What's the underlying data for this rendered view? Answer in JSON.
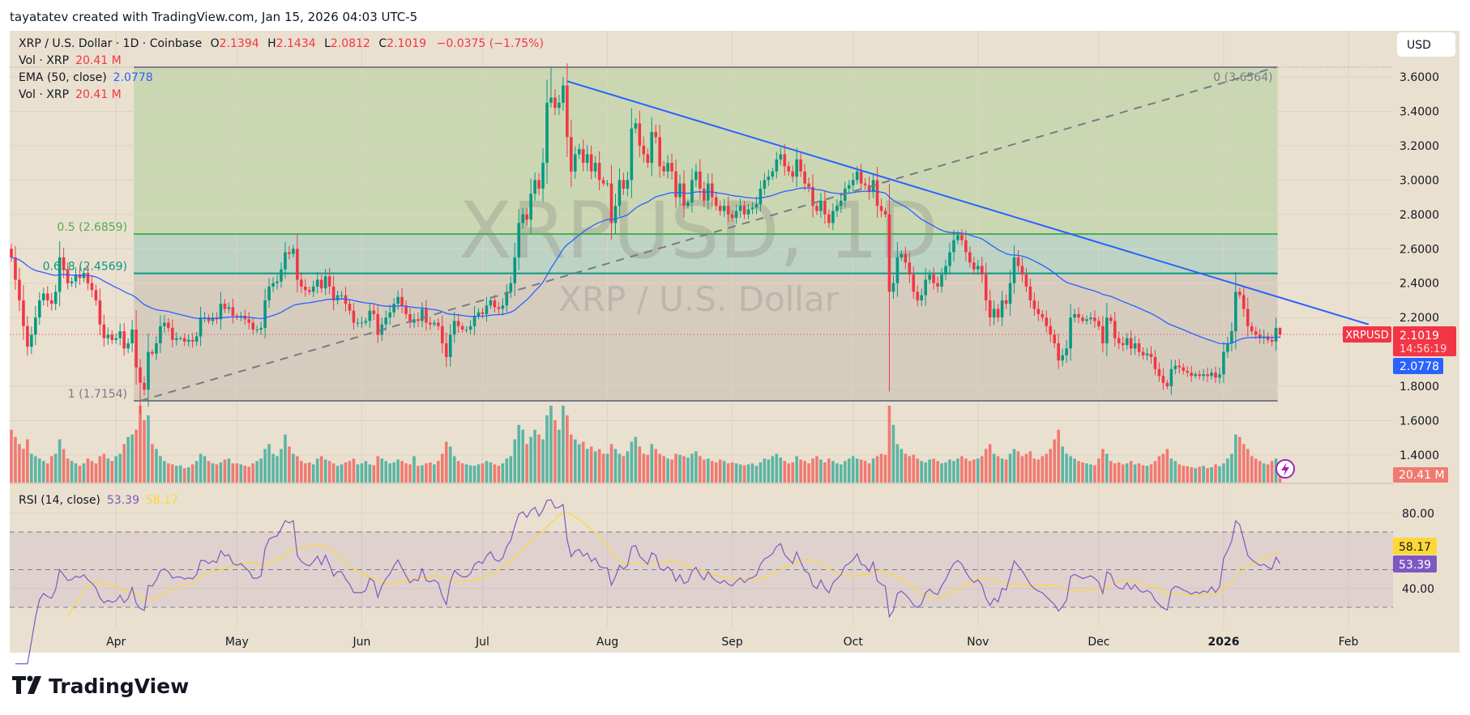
{
  "attribution": "tayatatev created with TradingView.com, Jan 15, 2026 04:03 UTC-5",
  "legend": {
    "symbol": "XRP / U.S. Dollar · 1D · Coinbase",
    "o_label": "O",
    "open": "2.1394",
    "h_label": "H",
    "high": "2.1434",
    "l_label": "L",
    "low": "2.0812",
    "c_label": "C",
    "close": "2.1019",
    "change": "−0.0375 (−1.75%)",
    "vol_label": "Vol · XRP",
    "vol_value": "20.41 M",
    "ema_label": "EMA (50, close)",
    "ema_value": "2.0778",
    "vol2_label": "Vol · XRP",
    "vol2_value": "20.41 M",
    "rsi_label": "RSI (14, close)",
    "rsi_value": "53.39",
    "rsi_ma_value": "58.17"
  },
  "currency_button": "USD",
  "watermark": {
    "line1": "XRPUSD, 1D",
    "line2": "XRP / U.S. Dollar"
  },
  "price_labels": {
    "symbol": "XRPUSD",
    "last": "2.1019",
    "countdown": "14:56:19",
    "ema": "2.0778",
    "volume": "20.41 M",
    "rsi_ma": "58.17",
    "rsi": "53.39"
  },
  "brand": "TradingView",
  "colors": {
    "background": "#eae0d0",
    "up": "#089981",
    "down": "#f23645",
    "volume_up": "#5bb5a4",
    "volume_down": "#f07a72",
    "ema": "#2962ff",
    "trendline": "#2962ff",
    "rsi": "#7e57c2",
    "rsi_ma": "#fdd835",
    "fib_zone_0_05": "#cbd7b3",
    "fib_zone_05_0618": "#bdd3c4",
    "fib_zone_0618_1": "#d6ccbe",
    "fib_05": "#4caf50",
    "fib_0618": "#089981",
    "fib_0": "#787b86",
    "fib_1": "#787b86"
  },
  "chart_data": {
    "type": "candlestick",
    "symbol": "XRPUSD",
    "interval": "1D",
    "price_axis": {
      "ticks": [
        "3.6000",
        "3.4000",
        "3.2000",
        "3.0000",
        "2.8000",
        "2.6000",
        "2.4000",
        "2.2000",
        "1.8000",
        "1.6000",
        "1.4000"
      ],
      "range": [
        1.3,
        3.75
      ]
    },
    "rsi_axis": {
      "ticks": [
        "80.00",
        "40.00"
      ],
      "band": [
        30,
        70
      ],
      "mid": 50
    },
    "time_axis": {
      "ticks": [
        {
          "label": "Apr",
          "date": "2025-04-01"
        },
        {
          "label": "May",
          "date": "2025-05-01"
        },
        {
          "label": "Jun",
          "date": "2025-06-01"
        },
        {
          "label": "Jul",
          "date": "2025-07-01"
        },
        {
          "label": "Aug",
          "date": "2025-08-01"
        },
        {
          "label": "Sep",
          "date": "2025-09-01"
        },
        {
          "label": "Oct",
          "date": "2025-10-01"
        },
        {
          "label": "Nov",
          "date": "2025-11-01"
        },
        {
          "label": "Dec",
          "date": "2025-12-01"
        },
        {
          "label": "2026",
          "date": "2026-01-01",
          "bold": true
        },
        {
          "label": "Feb",
          "date": "2026-02-01"
        }
      ]
    },
    "last_candle": {
      "open": 2.1394,
      "high": 2.1434,
      "low": 2.0812,
      "close": 2.1019
    },
    "wick_extremes": [
      {
        "date": "2025-04-07",
        "low": 1.64
      },
      {
        "date": "2025-07-18",
        "high": 3.66
      },
      {
        "date": "2025-10-10",
        "low": 1.77
      }
    ],
    "months": [
      {
        "month": "2025-03",
        "first_day": 6,
        "closes": [
          2.55,
          2.42,
          2.3,
          2.15,
          2.03,
          2.1,
          2.2,
          2.3,
          2.34,
          2.3,
          2.28,
          2.35,
          2.55,
          2.48,
          2.4,
          2.41,
          2.45,
          2.43,
          2.46,
          2.4,
          2.36,
          2.3,
          2.16,
          2.08,
          2.1,
          2.07
        ],
        "volumes_m": [
          110,
          95,
          80,
          70,
          90,
          60,
          55,
          50,
          45,
          40,
          55,
          60,
          90,
          70,
          50,
          45,
          40,
          35,
          40,
          50,
          45,
          40,
          55,
          60,
          50,
          45
        ]
      },
      {
        "month": "2025-04",
        "first_day": 1,
        "closes": [
          2.08,
          2.12,
          2.02,
          2.05,
          2.13,
          1.91,
          1.82,
          1.78,
          2.0,
          1.99,
          2.05,
          2.15,
          2.17,
          2.14,
          2.07,
          2.08,
          2.08,
          2.06,
          2.07,
          2.06,
          2.09,
          2.2,
          2.2,
          2.18,
          2.2,
          2.19,
          2.28,
          2.25,
          2.26,
          2.21
        ],
        "volumes_m": [
          55,
          60,
          80,
          95,
          100,
          110,
          160,
          130,
          140,
          80,
          70,
          55,
          45,
          40,
          38,
          35,
          36,
          30,
          32,
          38,
          45,
          60,
          55,
          45,
          40,
          38,
          42,
          48,
          50,
          40
        ]
      },
      {
        "month": "2025-05",
        "first_day": 1,
        "closes": [
          2.2,
          2.21,
          2.19,
          2.17,
          2.13,
          2.13,
          2.14,
          2.3,
          2.38,
          2.4,
          2.41,
          2.48,
          2.58,
          2.57,
          2.6,
          2.42,
          2.38,
          2.36,
          2.35,
          2.38,
          2.42,
          2.37,
          2.44,
          2.38,
          2.3,
          2.33,
          2.33,
          2.28,
          2.24,
          2.17,
          2.17
        ],
        "volumes_m": [
          40,
          38,
          35,
          33,
          40,
          45,
          50,
          70,
          80,
          60,
          55,
          70,
          100,
          75,
          60,
          55,
          45,
          40,
          42,
          38,
          50,
          55,
          48,
          45,
          40,
          35,
          38,
          42,
          45,
          50,
          38
        ]
      },
      {
        "month": "2025-06",
        "first_day": 1,
        "closes": [
          2.17,
          2.18,
          2.24,
          2.22,
          2.1,
          2.16,
          2.2,
          2.23,
          2.28,
          2.32,
          2.27,
          2.22,
          2.17,
          2.19,
          2.18,
          2.25,
          2.17,
          2.16,
          2.17,
          2.15,
          2.05,
          1.97,
          2.1,
          2.18,
          2.15,
          2.13,
          2.13,
          2.15,
          2.21,
          2.23
        ],
        "volumes_m": [
          40,
          45,
          38,
          36,
          55,
          50,
          45,
          40,
          42,
          48,
          45,
          40,
          38,
          55,
          35,
          36,
          40,
          42,
          38,
          45,
          60,
          85,
          75,
          55,
          45,
          40,
          38,
          36,
          35,
          38
        ]
      },
      {
        "month": "2025-07",
        "first_day": 1,
        "closes": [
          2.22,
          2.27,
          2.3,
          2.26,
          2.25,
          2.27,
          2.35,
          2.4,
          2.55,
          2.75,
          2.8,
          2.77,
          2.92,
          3.0,
          2.95,
          3.1,
          3.45,
          3.48,
          3.42,
          3.45,
          3.55,
          3.25,
          3.05,
          3.15,
          3.18,
          3.1,
          3.15,
          3.05,
          3.1,
          3.0,
          2.98
        ],
        "volumes_m": [
          40,
          45,
          42,
          38,
          35,
          40,
          50,
          55,
          90,
          120,
          110,
          80,
          95,
          110,
          100,
          90,
          140,
          160,
          130,
          110,
          160,
          140,
          100,
          90,
          80,
          85,
          70,
          75,
          65,
          70,
          60
        ]
      },
      {
        "month": "2025-08",
        "first_day": 1,
        "closes": [
          2.98,
          2.75,
          2.85,
          3.0,
          2.95,
          3.0,
          3.3,
          3.33,
          3.2,
          3.15,
          3.1,
          3.28,
          3.25,
          3.08,
          3.05,
          3.1,
          3.05,
          2.9,
          2.98,
          2.85,
          2.87,
          3.0,
          3.05,
          2.95,
          2.88,
          2.98,
          2.9,
          2.85,
          2.82,
          2.85,
          2.8
        ],
        "volumes_m": [
          60,
          80,
          70,
          60,
          55,
          65,
          85,
          95,
          75,
          60,
          58,
          80,
          70,
          60,
          55,
          50,
          48,
          60,
          58,
          55,
          52,
          60,
          65,
          55,
          48,
          50,
          45,
          42,
          48,
          45,
          40
        ]
      },
      {
        "month": "2025-09",
        "first_day": 1,
        "closes": [
          2.78,
          2.82,
          2.85,
          2.8,
          2.83,
          2.84,
          2.86,
          2.95,
          3.0,
          3.02,
          3.05,
          3.12,
          3.15,
          3.08,
          3.05,
          3.02,
          3.12,
          3.05,
          2.98,
          2.96,
          2.85,
          2.82,
          2.88,
          2.8,
          2.75,
          2.82,
          2.85,
          2.88,
          2.95,
          2.97
        ],
        "volumes_m": [
          42,
          40,
          38,
          36,
          38,
          40,
          35,
          42,
          50,
          48,
          55,
          60,
          52,
          45,
          40,
          42,
          55,
          48,
          45,
          40,
          50,
          55,
          48,
          42,
          50,
          45,
          40,
          38,
          45,
          50
        ]
      },
      {
        "month": "2025-10",
        "first_day": 1,
        "closes": [
          3.0,
          3.05,
          2.98,
          2.97,
          2.93,
          3.0,
          2.85,
          2.82,
          2.8,
          2.35,
          2.4,
          2.55,
          2.57,
          2.52,
          2.45,
          2.35,
          2.3,
          2.33,
          2.42,
          2.45,
          2.4,
          2.38,
          2.45,
          2.5,
          2.58,
          2.65,
          2.68,
          2.65,
          2.58,
          2.52,
          2.48
        ],
        "volumes_m": [
          55,
          50,
          48,
          45,
          40,
          50,
          55,
          60,
          58,
          160,
          120,
          80,
          70,
          60,
          55,
          58,
          50,
          45,
          42,
          48,
          50,
          45,
          40,
          42,
          48,
          45,
          50,
          55,
          50,
          45,
          48
        ]
      },
      {
        "month": "2025-11",
        "first_day": 1,
        "closes": [
          2.5,
          2.45,
          2.3,
          2.2,
          2.25,
          2.2,
          2.3,
          2.28,
          2.4,
          2.55,
          2.5,
          2.45,
          2.38,
          2.3,
          2.25,
          2.22,
          2.2,
          2.15,
          2.1,
          2.05,
          1.95,
          1.98,
          2.02,
          2.2,
          2.22,
          2.2,
          2.18,
          2.19,
          2.2,
          2.18
        ],
        "volumes_m": [
          50,
          55,
          70,
          80,
          60,
          55,
          50,
          48,
          60,
          70,
          65,
          55,
          60,
          65,
          50,
          48,
          55,
          60,
          70,
          90,
          110,
          75,
          60,
          55,
          50,
          45,
          42,
          40,
          38,
          36
        ]
      },
      {
        "month": "2025-12",
        "first_day": 1,
        "closes": [
          2.15,
          2.05,
          2.2,
          2.18,
          2.08,
          2.05,
          2.04,
          2.08,
          2.02,
          2.05,
          2.0,
          1.98,
          1.99,
          1.97,
          1.9,
          1.86,
          1.82,
          1.8,
          1.9,
          1.92,
          1.91,
          1.89,
          1.88,
          1.86,
          1.87,
          1.86,
          1.87,
          1.86,
          1.88,
          1.85,
          1.87
        ],
        "volumes_m": [
          50,
          70,
          60,
          45,
          40,
          42,
          38,
          40,
          45,
          38,
          40,
          36,
          35,
          38,
          45,
          55,
          60,
          70,
          50,
          45,
          38,
          35,
          34,
          32,
          30,
          33,
          35,
          30,
          32,
          38,
          34
        ]
      },
      {
        "month": "2026-01",
        "first_day": 1,
        "closes": [
          2.0,
          2.05,
          2.12,
          2.35,
          2.33,
          2.25,
          2.15,
          2.12,
          2.1,
          2.08,
          2.09,
          2.07,
          2.06,
          2.1394,
          2.1019
        ],
        "volumes_m": [
          40,
          50,
          60,
          100,
          95,
          80,
          70,
          55,
          50,
          45,
          40,
          38,
          45,
          50,
          20.41
        ]
      }
    ],
    "indicators": {
      "ema": {
        "label": "EMA (50, close)",
        "last": 2.0778
      },
      "rsi": {
        "label": "RSI (14, close)",
        "last": 53.39,
        "ma_last": 58.17
      }
    },
    "fib_retracement": {
      "start_date": "2025-04-07",
      "end_date": "2026-01-14",
      "levels": [
        {
          "ratio": "0",
          "price": 3.6564,
          "label": "0 (3.6564)"
        },
        {
          "ratio": "0.5",
          "price": 2.6859,
          "label": "0.5 (2.6859)"
        },
        {
          "ratio": "0.618",
          "price": 2.4569,
          "label": "0.618 (2.4569)"
        },
        {
          "ratio": "1",
          "price": 1.7154,
          "label": "1 (1.7154)"
        }
      ]
    },
    "trendlines": [
      {
        "style": "solid",
        "color": "#2962ff",
        "from": {
          "date": "2025-07-22",
          "price": 3.575
        },
        "to": {
          "date": "2026-02-06",
          "price": 2.16
        }
      },
      {
        "style": "dashed",
        "color": "#787b86",
        "from": {
          "date": "2025-04-07",
          "price": 1.7154
        },
        "to": {
          "date": "2026-01-14",
          "price": 3.6564
        }
      }
    ]
  }
}
